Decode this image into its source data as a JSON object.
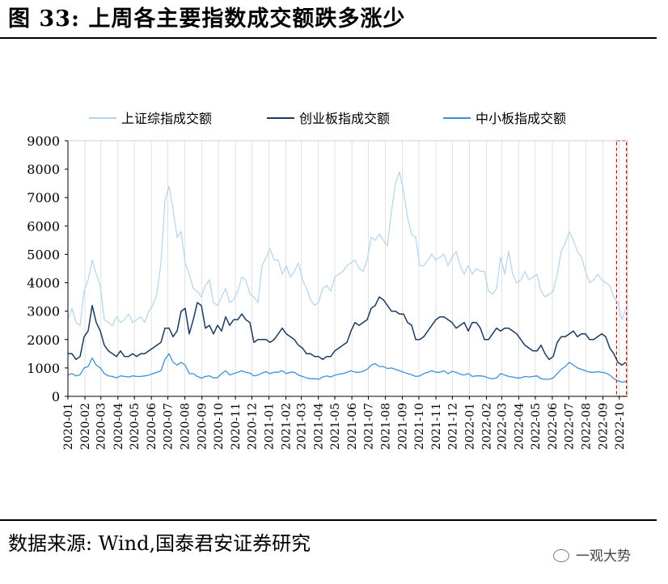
{
  "figure": {
    "title": "图 33:  上周各主要指数成交额跌多涨少",
    "source": "数据来源:  Wind,国泰君安证券研究",
    "watermark": "一观大势"
  },
  "chart_data": {
    "type": "line",
    "legend_position": "top",
    "ylim": [
      0,
      9000
    ],
    "yticks": [
      "0",
      "1000",
      "2000",
      "3000",
      "4000",
      "5000",
      "6000",
      "7000",
      "8000",
      "9000"
    ],
    "xticks": [
      "2020-01",
      "2020-02",
      "2020-03",
      "2020-04",
      "2020-05",
      "2020-06",
      "2020-07",
      "2020-08",
      "2020-09",
      "2020-10",
      "2020-11",
      "2020-12",
      "2021-01",
      "2021-02",
      "2021-03",
      "2021-04",
      "2021-05",
      "2021-06",
      "2021-07",
      "2021-08",
      "2021-09",
      "2021-10",
      "2021-11",
      "2021-12",
      "2022-01",
      "2022-02",
      "2022-03",
      "2022-04",
      "2022-05",
      "2022-06",
      "2022-07",
      "2022-08",
      "2022-09",
      "2022-10"
    ],
    "highlight_window": [
      "2022-09-26",
      "2022-10-14"
    ],
    "colors": {
      "sse": "#b3d4ee",
      "chinext": "#1b3a5f",
      "sme": "#3d8fd8",
      "highlight": "#c00000"
    },
    "series": [
      {
        "key": "sse",
        "name": "上证综指成交额",
        "values": [
          2700,
          3100,
          2600,
          2500,
          3700,
          4100,
          4800,
          4300,
          3900,
          2700,
          2600,
          2500,
          2800,
          2600,
          2700,
          2900,
          2600,
          2700,
          2800,
          2600,
          3000,
          3200,
          3600,
          4700,
          6900,
          7400,
          6600,
          5600,
          5800,
          4700,
          4300,
          3800,
          3700,
          3500,
          3900,
          4100,
          3300,
          3200,
          3500,
          3800,
          3300,
          3400,
          3700,
          4200,
          4100,
          3600,
          3500,
          3300,
          4600,
          4900,
          5200,
          4800,
          4800,
          4300,
          4600,
          4200,
          4400,
          4700,
          4100,
          3800,
          3400,
          3200,
          3300,
          3800,
          3900,
          3700,
          4200,
          4300,
          4400,
          4600,
          4700,
          4800,
          4500,
          4400,
          4800,
          5600,
          5500,
          5700,
          5500,
          5300,
          6500,
          7500,
          7900,
          7200,
          6300,
          5700,
          5600,
          4600,
          4600,
          4800,
          5000,
          4800,
          4900,
          5000,
          4600,
          4900,
          5100,
          4600,
          4300,
          4600,
          4300,
          4500,
          4400,
          4400,
          3700,
          3600,
          3800,
          4900,
          4300,
          5100,
          4300,
          4000,
          4100,
          4400,
          4100,
          4200,
          4300,
          3700,
          3500,
          3600,
          3700,
          4300,
          5100,
          5400,
          5800,
          5500,
          5100,
          4900,
          4400,
          4000,
          4100,
          4300,
          4100,
          4000,
          3900,
          3500,
          3300,
          2700,
          3100
        ]
      },
      {
        "key": "chinext",
        "name": "创业板指成交额",
        "values": [
          1500,
          1500,
          1300,
          1400,
          2100,
          2300,
          3200,
          2600,
          2300,
          1800,
          1600,
          1500,
          1400,
          1600,
          1400,
          1400,
          1500,
          1400,
          1500,
          1500,
          1600,
          1700,
          1800,
          1900,
          2400,
          2400,
          2100,
          2300,
          3000,
          3100,
          2200,
          2700,
          3300,
          3200,
          2400,
          2500,
          2200,
          2500,
          2300,
          2800,
          2500,
          2700,
          2700,
          2900,
          2700,
          2600,
          1900,
          2000,
          2000,
          2000,
          1900,
          2000,
          2200,
          2400,
          2200,
          2100,
          2000,
          1800,
          1700,
          1500,
          1500,
          1400,
          1400,
          1300,
          1400,
          1400,
          1600,
          1700,
          1800,
          1900,
          2300,
          2600,
          2500,
          2600,
          2700,
          3100,
          3200,
          3500,
          3400,
          3200,
          3000,
          3000,
          2900,
          2900,
          2600,
          2500,
          2000,
          2000,
          2100,
          2300,
          2500,
          2700,
          2800,
          2800,
          2700,
          2600,
          2400,
          2500,
          2600,
          2300,
          2600,
          2600,
          2400,
          2000,
          2000,
          2200,
          2400,
          2300,
          2400,
          2400,
          2300,
          2200,
          2000,
          1800,
          1700,
          1600,
          1600,
          1800,
          1500,
          1300,
          1400,
          1900,
          2100,
          2100,
          2200,
          2300,
          2100,
          2200,
          2200,
          2000,
          2000,
          2100,
          2200,
          2100,
          1700,
          1500,
          1200,
          1100,
          1200
        ]
      },
      {
        "key": "sme",
        "name": "中小板指成交额",
        "values": [
          750,
          800,
          720,
          760,
          1000,
          1050,
          1350,
          1100,
          1000,
          800,
          720,
          700,
          650,
          720,
          700,
          680,
          720,
          700,
          700,
          720,
          750,
          800,
          850,
          900,
          1300,
          1500,
          1200,
          1100,
          1200,
          1100,
          800,
          800,
          700,
          640,
          700,
          720,
          650,
          660,
          800,
          900,
          750,
          800,
          850,
          900,
          850,
          820,
          720,
          750,
          820,
          870,
          800,
          850,
          850,
          900,
          800,
          850,
          850,
          750,
          700,
          650,
          620,
          620,
          600,
          680,
          720,
          680,
          750,
          780,
          800,
          850,
          900,
          850,
          850,
          880,
          950,
          1100,
          1150,
          1050,
          1050,
          980,
          1000,
          950,
          900,
          850,
          800,
          760,
          700,
          720,
          800,
          850,
          900,
          850,
          850,
          900,
          800,
          880,
          850,
          780,
          750,
          800,
          700,
          720,
          720,
          700,
          650,
          620,
          650,
          800,
          750,
          700,
          680,
          650,
          650,
          700,
          680,
          700,
          720,
          620,
          600,
          600,
          650,
          800,
          950,
          1050,
          1200,
          1100,
          1000,
          950,
          900,
          850,
          850,
          870,
          850,
          820,
          750,
          620,
          550,
          500,
          520
        ]
      }
    ]
  }
}
